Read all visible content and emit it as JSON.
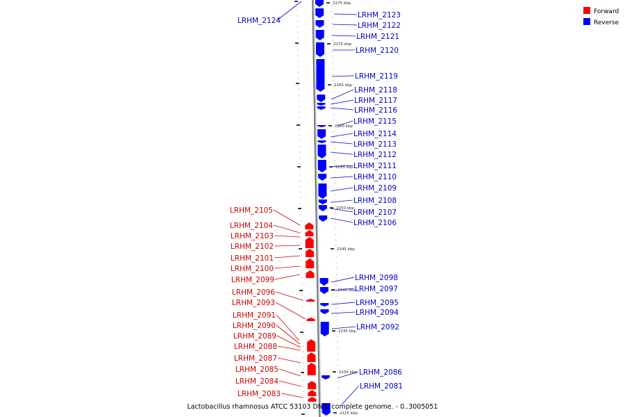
{
  "legend": [
    {
      "label": "Forward",
      "color": "#ff0000"
    },
    {
      "label": "Reverse",
      "color": "#0000ff"
    }
  ],
  "caption": "Lactobacillus rhamnosus ATCC 53103 DNA, complete genome. - 0..3005051",
  "colors": {
    "forward": "#ff0000",
    "reverse": "#0000ff",
    "forward_label": "#cc0000",
    "reverse_label": "#0000cc"
  },
  "ticks": [
    "2275 kbp",
    "2270 kbp",
    "2265 kbp",
    "2260 kbp",
    "2255 kbp",
    "2250 kbp",
    "2245 kbp",
    "2240 kbp",
    "2235 kbp",
    "2230 kbp",
    "2225 kbp"
  ],
  "genes_reverse": [
    "LRHM_2124",
    "LRHM_2123",
    "LRHM_2122",
    "LRHM_2121",
    "LRHM_2120",
    "LRHM_2119",
    "LRHM_2118",
    "LRHM_2117",
    "LRHM_2116",
    "LRHM_2115",
    "LRHM_2114",
    "LRHM_2113",
    "LRHM_2112",
    "LRHM_2111",
    "LRHM_2110",
    "LRHM_2109",
    "LRHM_2108",
    "LRHM_2107",
    "LRHM_2106",
    "LRHM_2098",
    "LRHM_2097",
    "LRHM_2095",
    "LRHM_2094",
    "LRHM_2092",
    "LRHM_2086",
    "LRHM_2081"
  ],
  "genes_forward": [
    "LRHM_2105",
    "LRHM_2104",
    "LRHM_2103",
    "LRHM_2102",
    "LRHM_2101",
    "LRHM_2100",
    "LRHM_2099",
    "LRHM_2096",
    "LRHM_2093",
    "LRHM_2091",
    "LRHM_2090",
    "LRHM_2089",
    "LRHM_2088",
    "LRHM_2087",
    "LRHM_2085",
    "LRHM_2084",
    "LRHM_2083"
  ]
}
